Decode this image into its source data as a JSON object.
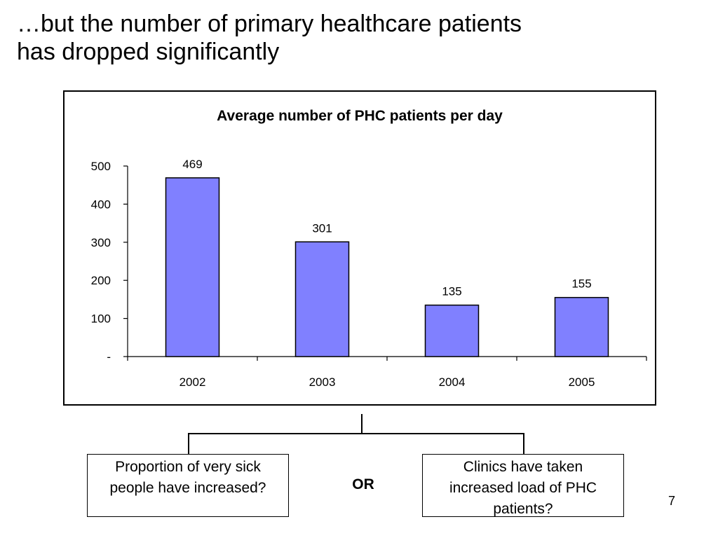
{
  "slide": {
    "title_lines": [
      "…but the number of primary healthcare patients",
      "has dropped significantly"
    ],
    "page_number": "7"
  },
  "chart_data": {
    "type": "bar",
    "title": "Average number of PHC patients per day",
    "categories": [
      "2002",
      "2003",
      "2004",
      "2005"
    ],
    "values": [
      469,
      301,
      135,
      155
    ],
    "data_labels": [
      "469",
      "301",
      "135",
      "155"
    ],
    "ylim": [
      0,
      500
    ],
    "yticks": [
      0,
      100,
      200,
      300,
      400,
      500
    ],
    "ytick_labels": [
      "-",
      "100",
      "200",
      "300",
      "400",
      "500"
    ],
    "xlabel": "",
    "ylabel": "",
    "grid": false,
    "legend": "none",
    "bar_color": "#8080ff",
    "bar_edge_color": "#000000"
  },
  "diagram": {
    "left_box": "Proportion of very sick people have increased?",
    "or_label": "OR",
    "right_box": "Clinics have taken increased load of PHC patients?"
  }
}
